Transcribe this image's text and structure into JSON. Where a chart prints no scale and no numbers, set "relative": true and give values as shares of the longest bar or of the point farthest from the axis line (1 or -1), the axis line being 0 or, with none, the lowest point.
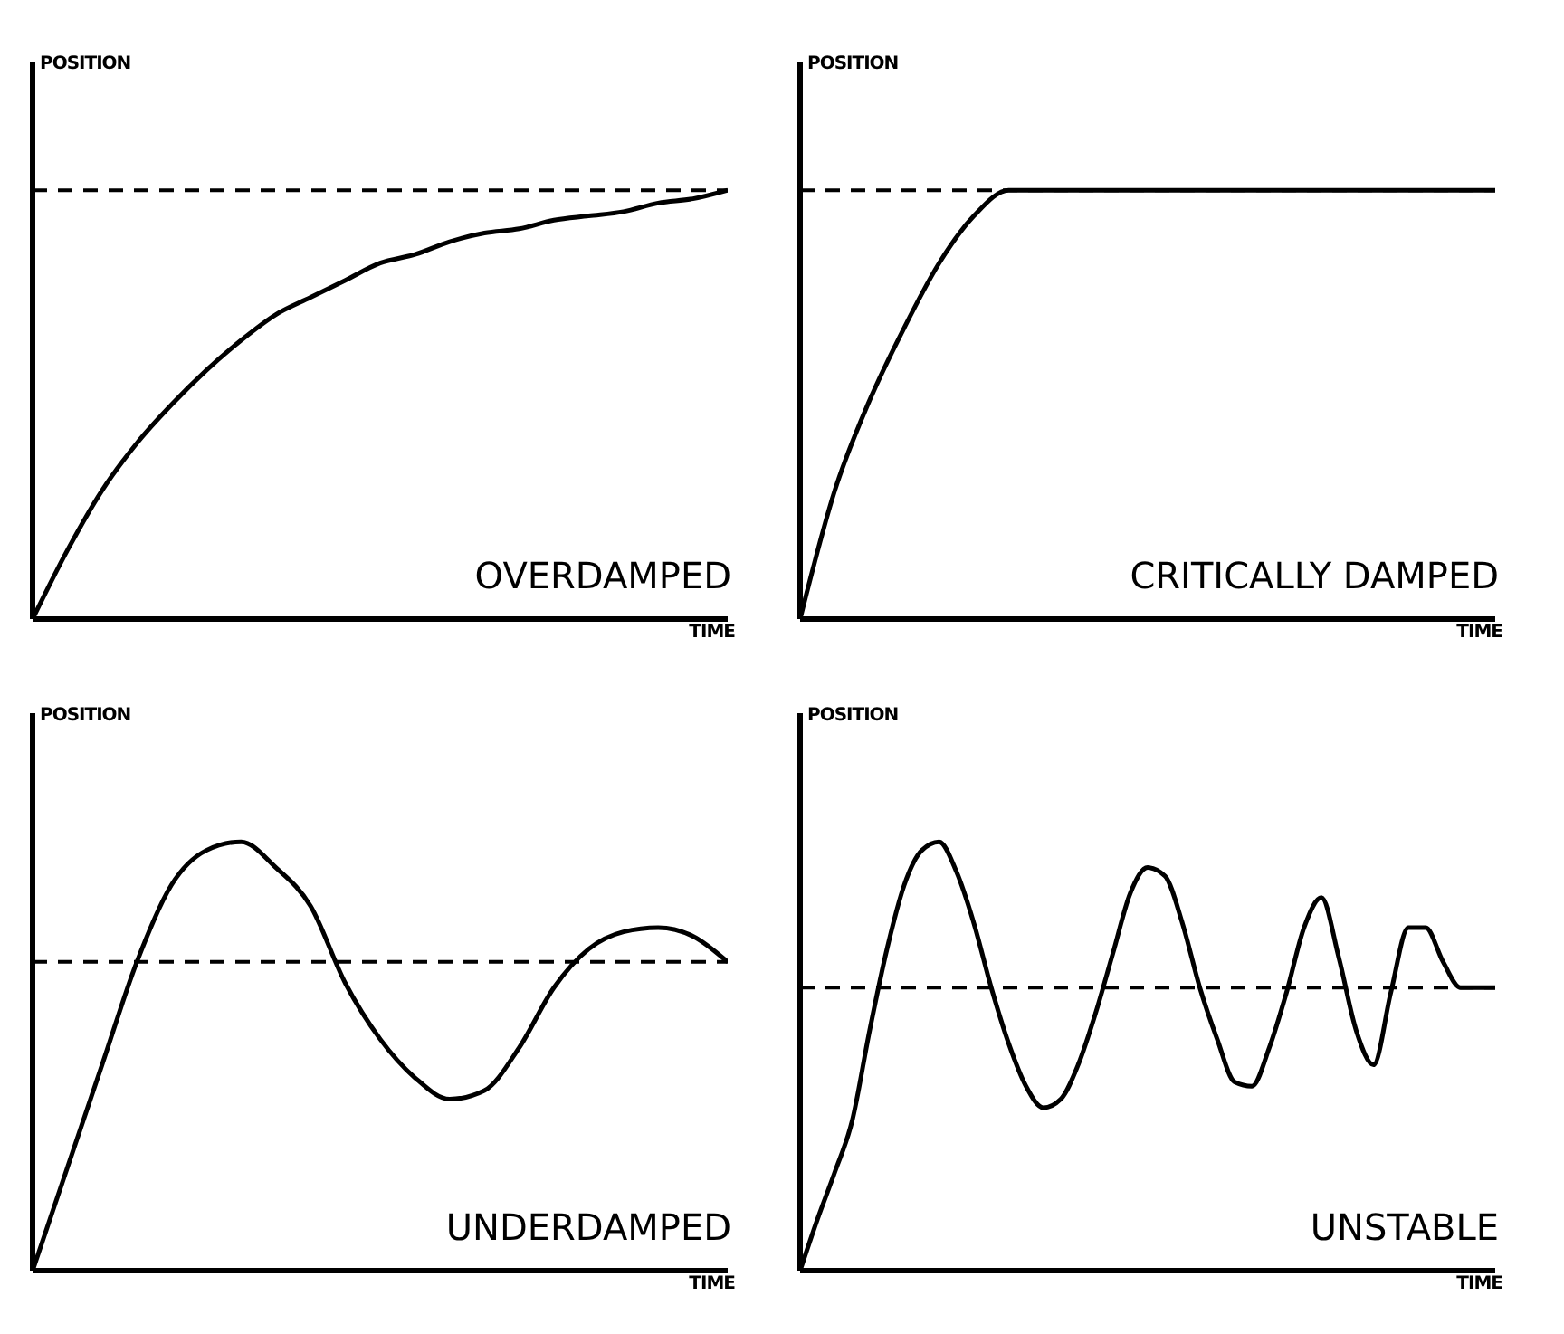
{
  "chart_data": [
    {
      "type": "line",
      "title": "OVERDAMPED",
      "xlabel": "TIME",
      "ylabel": "POSITION",
      "relative": true,
      "grid": false,
      "legend": false,
      "marker": "none",
      "line_style": "solid",
      "categories": [
        null,
        null,
        null,
        null,
        null,
        null,
        null,
        null,
        null,
        null,
        null,
        null,
        null,
        null,
        null,
        null,
        null,
        null,
        null,
        null,
        null
      ],
      "series": [
        {
          "color": "#000000",
          "values": [
            0,
            0.16,
            0.3,
            0.41,
            0.5,
            0.58,
            0.65,
            0.71,
            0.75,
            0.79,
            0.83,
            0.85,
            0.88,
            0.9,
            0.91,
            0.93,
            0.94,
            0.95,
            0.97,
            0.98,
            1.0
          ]
        }
      ],
      "ref_lines": [
        {
          "axis": "y",
          "value": 1.0,
          "color": "#000000",
          "line_style": "dashed"
        }
      ]
    },
    {
      "type": "line",
      "title": "CRITICALLY DAMPED",
      "xlabel": "TIME",
      "ylabel": "POSITION",
      "relative": true,
      "grid": false,
      "legend": false,
      "marker": "none",
      "line_style": "solid",
      "categories": [
        null,
        null,
        null,
        null,
        null,
        null,
        null,
        null,
        null,
        null,
        null,
        null,
        null,
        null,
        null,
        null,
        null,
        null,
        null,
        null,
        null
      ],
      "series": [
        {
          "color": "#000000",
          "values": [
            0,
            0.3,
            0.51,
            0.68,
            0.83,
            0.94,
            1.0,
            1.0,
            1.0,
            1.0,
            1.0,
            1.0,
            1.0,
            1.0,
            1.0,
            1.0,
            1.0,
            1.0,
            1.0,
            1.0,
            1.0
          ]
        }
      ],
      "ref_lines": [
        {
          "axis": "y",
          "value": 1.0,
          "color": "#000000",
          "line_style": "dashed"
        }
      ]
    },
    {
      "type": "line",
      "title": "UNDERDAMPED",
      "xlabel": "TIME",
      "ylabel": "POSITION",
      "relative": true,
      "grid": false,
      "legend": false,
      "marker": "none",
      "line_style": "solid",
      "categories": [
        null,
        null,
        null,
        null,
        null,
        null,
        null,
        null,
        null,
        null,
        null,
        null,
        null,
        null,
        null,
        null,
        null,
        null,
        null,
        null,
        null
      ],
      "series": [
        {
          "color": "#000000",
          "values": [
            0,
            0.24,
            0.48,
            0.72,
            0.9,
            0.98,
            1.0,
            0.94,
            0.85,
            0.67,
            0.54,
            0.45,
            0.4,
            0.42,
            0.52,
            0.66,
            0.75,
            0.79,
            0.8,
            0.78,
            0.72
          ]
        }
      ],
      "ref_lines": [
        {
          "axis": "y",
          "value": 0.72,
          "color": "#000000",
          "line_style": "dashed"
        }
      ]
    },
    {
      "type": "line",
      "title": "UNSTABLE",
      "xlabel": "TIME",
      "ylabel": "POSITION",
      "relative": true,
      "grid": false,
      "legend": false,
      "marker": "none",
      "line_style": "solid",
      "categories": [
        null,
        null,
        null,
        null,
        null,
        null,
        null,
        null,
        null,
        null,
        null,
        null,
        null,
        null,
        null,
        null,
        null,
        null,
        null,
        null,
        null,
        null,
        null,
        null,
        null,
        null,
        null,
        null,
        null,
        null,
        null,
        null,
        null,
        null,
        null,
        null,
        null,
        null,
        null,
        null,
        null
      ],
      "series": [
        {
          "color": "#000000",
          "values": [
            0,
            0.12,
            0.23,
            0.35,
            0.56,
            0.75,
            0.9,
            0.98,
            1.0,
            0.93,
            0.81,
            0.66,
            0.53,
            0.43,
            0.38,
            0.4,
            0.48,
            0.6,
            0.74,
            0.88,
            0.94,
            0.92,
            0.81,
            0.66,
            0.54,
            0.44,
            0.43,
            0.52,
            0.65,
            0.8,
            0.87,
            0.73,
            0.56,
            0.48,
            0.65,
            0.8,
            0.8,
            0.72,
            0.66,
            0.66,
            0.66
          ]
        }
      ],
      "ref_lines": [
        {
          "axis": "y",
          "value": 0.66,
          "color": "#000000",
          "line_style": "dashed"
        }
      ]
    }
  ]
}
